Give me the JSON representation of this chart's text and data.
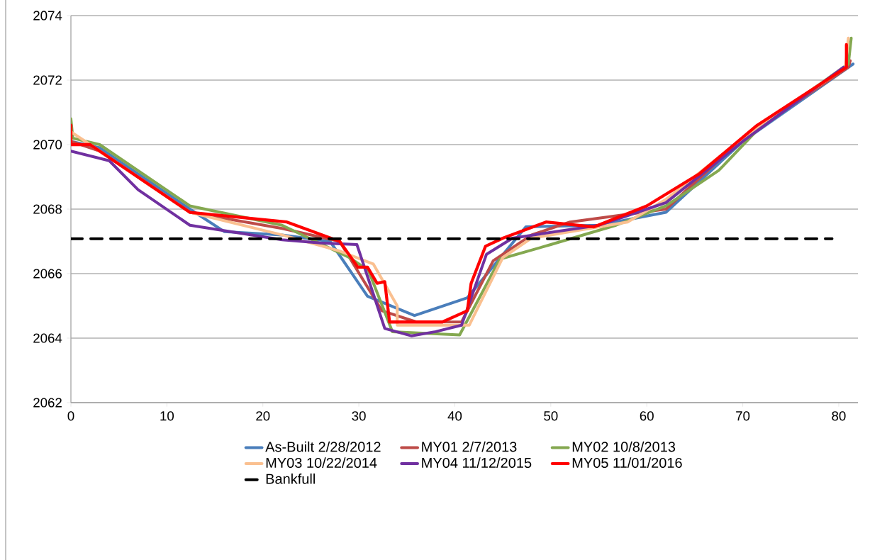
{
  "chart_data": {
    "type": "line",
    "xlim": [
      0,
      82
    ],
    "ylim": [
      2062,
      2074
    ],
    "xticks": [
      0,
      10,
      20,
      30,
      40,
      50,
      60,
      70,
      80
    ],
    "yticks": [
      2062,
      2064,
      2066,
      2068,
      2070,
      2072,
      2074
    ],
    "grid": "y",
    "legend": "bottom",
    "series": [
      {
        "name": "As-Built 2/28/2012",
        "color": "#4a7ebb",
        "x": [
          0,
          3,
          12.4,
          16,
          22,
          27,
          30.9,
          35.8,
          41.3,
          47.4,
          55,
          62,
          70,
          81.5
        ],
        "values": [
          2070.1,
          2069.9,
          2068.0,
          2067.3,
          2067.2,
          2067.0,
          2065.3,
          2064.7,
          2065.25,
          2067.45,
          2067.5,
          2067.9,
          2070.1,
          2072.5
        ]
      },
      {
        "name": "MY01 2/7/2013",
        "color": "#be4b48",
        "x": [
          0,
          3,
          12.4,
          22,
          28,
          32.4,
          36,
          40.7,
          44,
          48,
          52,
          62,
          70,
          81,
          81.2
        ],
        "values": [
          2070.1,
          2069.8,
          2067.9,
          2067.4,
          2067.0,
          2064.85,
          2064.5,
          2064.5,
          2066.4,
          2067.2,
          2067.6,
          2068.0,
          2070.2,
          2072.4,
          2072.6
        ]
      },
      {
        "name": "MY02 10/8/2013",
        "color": "#84a850",
        "x": [
          0,
          0.2,
          3,
          12.4,
          22,
          29,
          31,
          33.5,
          40.5,
          44.7,
          50,
          56.8,
          62,
          67.5,
          72,
          81,
          81.3
        ],
        "values": [
          2070.8,
          2070.2,
          2070.0,
          2068.1,
          2067.5,
          2066.5,
          2066.1,
          2064.2,
          2064.1,
          2066.45,
          2066.9,
          2067.5,
          2068.1,
          2069.2,
          2070.6,
          2072.5,
          2073.3
        ]
      },
      {
        "name": "MY03 10/22/2014",
        "color": "#fac090",
        "x": [
          0,
          2,
          12.4,
          22,
          28,
          31.5,
          34,
          34,
          41.5,
          42,
          45,
          48,
          58,
          62,
          70,
          80.7,
          81
        ],
        "values": [
          2070.4,
          2070.0,
          2067.9,
          2067.2,
          2066.7,
          2066.3,
          2065.0,
          2064.4,
          2064.4,
          2064.7,
          2066.5,
          2067.1,
          2067.6,
          2068.3,
          2070.2,
          2072.4,
          2073.3
        ]
      },
      {
        "name": "MY04 11/12/2015",
        "color": "#7030a0",
        "x": [
          0,
          4,
          7,
          12.4,
          22,
          26,
          29.8,
          32.7,
          35.5,
          38,
          40.7,
          43.3,
          46,
          55,
          60,
          62,
          70,
          80.5
        ],
        "values": [
          2069.8,
          2069.5,
          2068.6,
          2067.5,
          2067.05,
          2066.95,
          2066.9,
          2064.3,
          2064.07,
          2064.2,
          2064.4,
          2066.6,
          2067.1,
          2067.5,
          2068.0,
          2068.2,
          2070.1,
          2072.4
        ]
      },
      {
        "name": "MY05 11/01/2016",
        "color": "#ff0000",
        "x": [
          0,
          0,
          2,
          12.4,
          22.5,
          28,
          29.9,
          30.9,
          31.9,
          32.7,
          33.2,
          38.7,
          41.3,
          41.7,
          43.2,
          45,
          49.5,
          54.5,
          60,
          65.5,
          71.5,
          80.8,
          80.8
        ],
        "values": [
          2070.6,
          2070.0,
          2070.0,
          2067.9,
          2067.6,
          2067.0,
          2066.2,
          2066.2,
          2065.7,
          2065.75,
          2064.5,
          2064.5,
          2064.85,
          2065.7,
          2066.85,
          2067.1,
          2067.6,
          2067.45,
          2068.1,
          2069.1,
          2070.6,
          2072.4,
          2073.1
        ]
      },
      {
        "name": "Bankfull",
        "color": "#000000",
        "line_style": "dashed",
        "x": [
          0,
          79.3
        ],
        "values": [
          2067.08,
          2067.08
        ]
      }
    ]
  }
}
